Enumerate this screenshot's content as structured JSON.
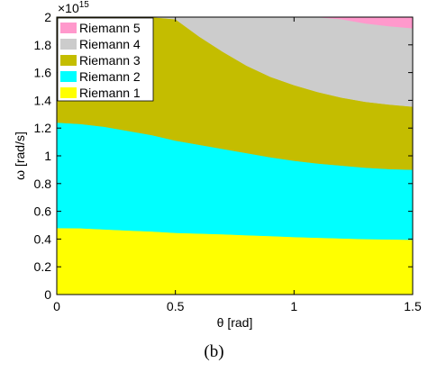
{
  "chart_data": {
    "type": "area",
    "xlabel": "θ [rad]",
    "ylabel": "ω [rad/s]",
    "exponent_label": "×10",
    "exponent_power": "15",
    "xlim": [
      0,
      1.5
    ],
    "ylim": [
      0,
      2
    ],
    "x_ticks": [
      0,
      0.5,
      1,
      1.5
    ],
    "x_tick_labels": [
      "0",
      "0.5",
      "1",
      "1.5"
    ],
    "y_ticks": [
      0,
      0.2,
      0.4,
      0.6,
      0.8,
      1,
      1.2,
      1.4,
      1.6,
      1.8,
      2
    ],
    "y_tick_labels": [
      "0",
      "0.2",
      "0.4",
      "0.6",
      "0.8",
      "1",
      "1.2",
      "1.4",
      "1.6",
      "1.8",
      "2"
    ],
    "x": [
      0,
      0.1,
      0.2,
      0.3,
      0.4,
      0.5,
      0.6,
      0.7,
      0.8,
      0.9,
      1.0,
      1.1,
      1.2,
      1.3,
      1.4,
      1.5
    ],
    "boundaries": [
      {
        "between": "Riemann 1 / Riemann 2",
        "y": [
          0.48,
          0.478,
          0.47,
          0.462,
          0.455,
          0.445,
          0.44,
          0.435,
          0.428,
          0.422,
          0.415,
          0.41,
          0.405,
          0.4,
          0.398,
          0.395
        ]
      },
      {
        "between": "Riemann 2 / Riemann 3",
        "y": [
          1.24,
          1.23,
          1.21,
          1.18,
          1.15,
          1.11,
          1.08,
          1.05,
          1.02,
          0.99,
          0.965,
          0.945,
          0.93,
          0.915,
          0.905,
          0.9
        ]
      },
      {
        "between": "Riemann 3 / Riemann 4",
        "y": [
          2.0,
          2.0,
          2.0,
          2.0,
          2.0,
          1.985,
          1.86,
          1.75,
          1.65,
          1.57,
          1.51,
          1.46,
          1.42,
          1.39,
          1.37,
          1.355
        ]
      },
      {
        "between": "Riemann 4 / Riemann 5",
        "y": [
          2.0,
          2.0,
          2.0,
          2.0,
          2.0,
          2.0,
          2.0,
          2.0,
          2.0,
          2.0,
          2.0,
          2.0,
          1.985,
          1.955,
          1.935,
          1.92
        ]
      }
    ],
    "series": [
      {
        "name": "Riemann 1",
        "color": "#ffff00"
      },
      {
        "name": "Riemann 2",
        "color": "#00ffff"
      },
      {
        "name": "Riemann 3",
        "color": "#c4bd00"
      },
      {
        "name": "Riemann 4",
        "color": "#cccccc"
      },
      {
        "name": "Riemann 5",
        "color": "#ff99cc"
      }
    ],
    "legend_order": [
      "Riemann 5",
      "Riemann 4",
      "Riemann 3",
      "Riemann 2",
      "Riemann 1"
    ],
    "legend_placement": "top-left",
    "grid": false
  },
  "caption": "(b)"
}
